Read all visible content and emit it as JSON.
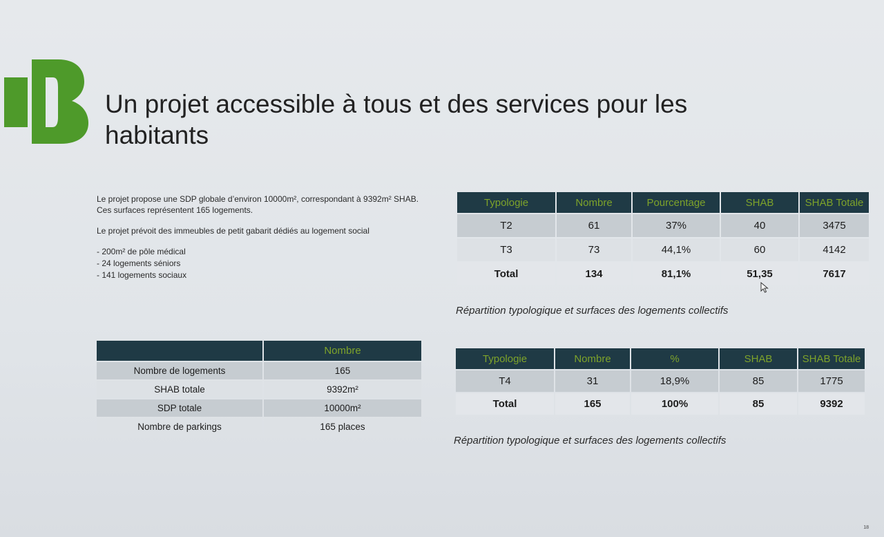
{
  "brand": {
    "logo_color": "#4e9a2a"
  },
  "title": "Un projet accessible à tous et des services pour les habitants",
  "intro": {
    "paragraph1": "Le projet propose une SDP globale d’environ 10000m², correspondant à 9392m² SHAB. Ces surfaces représentent 165 logements.",
    "paragraph2": "Le projet prévoit des immeubles de petit gabarit dédiés au logement social",
    "bullets": [
      "- 200m² de pôle médical",
      "- 24 logements séniors",
      "- 141 logements sociaux"
    ]
  },
  "summary_table": {
    "header": [
      "",
      "Nombre"
    ],
    "rows": [
      [
        "Nombre de logements",
        "165"
      ],
      [
        "SHAB totale",
        "9392m²"
      ],
      [
        "SDP totale",
        "10000m²"
      ],
      [
        "Nombre de parkings",
        "165 places"
      ]
    ]
  },
  "typo_table_1": {
    "header": [
      "Typologie",
      "Nombre",
      "Pourcentage",
      "SHAB",
      "SHAB Totale"
    ],
    "rows": [
      [
        "T2",
        "61",
        "37%",
        "40",
        "3475"
      ],
      [
        "T3",
        "73",
        "44,1%",
        "60",
        "4142"
      ]
    ],
    "total": [
      "Total",
      "134",
      "81,1%",
      "51,35",
      "7617"
    ],
    "caption": "Répartition typologique et surfaces des logements collectifs"
  },
  "typo_table_2": {
    "header": [
      "Typologie",
      "Nombre",
      "%",
      "SHAB",
      "SHAB Totale"
    ],
    "rows": [
      [
        "T4",
        "31",
        "18,9%",
        "85",
        "1775"
      ]
    ],
    "total": [
      "Total",
      "165",
      "100%",
      "85",
      "9392"
    ],
    "caption": "Répartition typologique et surfaces des logements collectifs"
  },
  "colors": {
    "header_bg": "#1f3a45",
    "header_text": "#7ea32a"
  },
  "page_number": "18"
}
